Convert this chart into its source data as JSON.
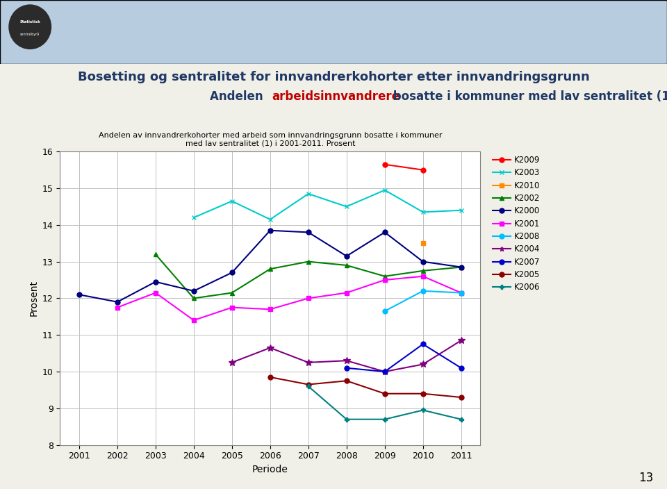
{
  "title_main": "Bosetting og sentralitet for innvandrerkohorter etter innvandringsgrunn",
  "chart_title": "Andelen av innvandrerkohorter med arbeid som innvandringsgrunn bosatte i kommuner\nmed lav sentralitet (1) i 2001-2011. Prosent",
  "xlabel": "Periode",
  "ylabel": "Prosent",
  "xlim": [
    2000.5,
    2011.5
  ],
  "ylim": [
    8,
    16
  ],
  "yticks": [
    8,
    9,
    10,
    11,
    12,
    13,
    14,
    15,
    16
  ],
  "xticks": [
    2001,
    2002,
    2003,
    2004,
    2005,
    2006,
    2007,
    2008,
    2009,
    2010,
    2011
  ],
  "series": {
    "K2009": {
      "color": "#FF0000",
      "marker": "o",
      "data": {
        "2009": 15.65,
        "2010": 15.5
      }
    },
    "K2003": {
      "color": "#00CCCC",
      "marker": "x",
      "data": {
        "2004": 14.2,
        "2005": 14.65,
        "2006": 14.15,
        "2007": 14.85,
        "2008": 14.5,
        "2009": 14.95,
        "2010": 14.35,
        "2011": 14.4
      }
    },
    "K2010": {
      "color": "#FF8C00",
      "marker": "s",
      "data": {
        "2010": 13.5
      }
    },
    "K2002": {
      "color": "#008000",
      "marker": "^",
      "data": {
        "2003": 13.2,
        "2004": 12.0,
        "2005": 12.15,
        "2006": 12.8,
        "2007": 13.0,
        "2008": 12.9,
        "2009": 12.6,
        "2010": 12.75,
        "2011": 12.85
      }
    },
    "K2000": {
      "color": "#000080",
      "marker": "o",
      "data": {
        "2001": 12.1,
        "2002": 11.9,
        "2003": 12.45,
        "2004": 12.2,
        "2005": 12.7,
        "2006": 13.85,
        "2007": 13.8,
        "2008": 13.15,
        "2009": 13.8,
        "2010": 13.0,
        "2011": 12.85
      }
    },
    "K2001": {
      "color": "#FF00FF",
      "marker": "s",
      "data": {
        "2002": 11.75,
        "2003": 12.15,
        "2004": 11.4,
        "2005": 11.75,
        "2006": 11.7,
        "2007": 12.0,
        "2008": 12.15,
        "2009": 12.5,
        "2010": 12.6,
        "2011": 12.15
      }
    },
    "K2008": {
      "color": "#00BFFF",
      "marker": "o",
      "data": {
        "2009": 11.65,
        "2010": 12.2,
        "2011": 12.15
      }
    },
    "K2004": {
      "color": "#800080",
      "marker": "*",
      "data": {
        "2005": 10.25,
        "2006": 10.65,
        "2007": 10.25,
        "2008": 10.3,
        "2009": 10.0,
        "2010": 10.2,
        "2011": 10.85
      }
    },
    "K2007": {
      "color": "#0000CD",
      "marker": "o",
      "data": {
        "2008": 10.1,
        "2009": 10.0,
        "2010": 10.75,
        "2011": 10.1
      }
    },
    "K2005": {
      "color": "#8B0000",
      "marker": "o",
      "data": {
        "2006": 9.85,
        "2007": 9.65,
        "2008": 9.75,
        "2009": 9.4,
        "2010": 9.4,
        "2011": 9.3
      }
    },
    "K2006": {
      "color": "#008080",
      "marker": "+",
      "data": {
        "2007": 9.6,
        "2008": 8.7,
        "2009": 8.7,
        "2010": 8.95,
        "2011": 8.7
      }
    }
  },
  "series_order": [
    "K2009",
    "K2003",
    "K2010",
    "K2002",
    "K2000",
    "K2001",
    "K2008",
    "K2004",
    "K2007",
    "K2005",
    "K2006"
  ],
  "background_outer": "#F0EFE8",
  "background_inner": "#FFFFFF",
  "grid_color": "#C0C0C0",
  "page_number": "13",
  "header_bg": "#C8D8E8"
}
